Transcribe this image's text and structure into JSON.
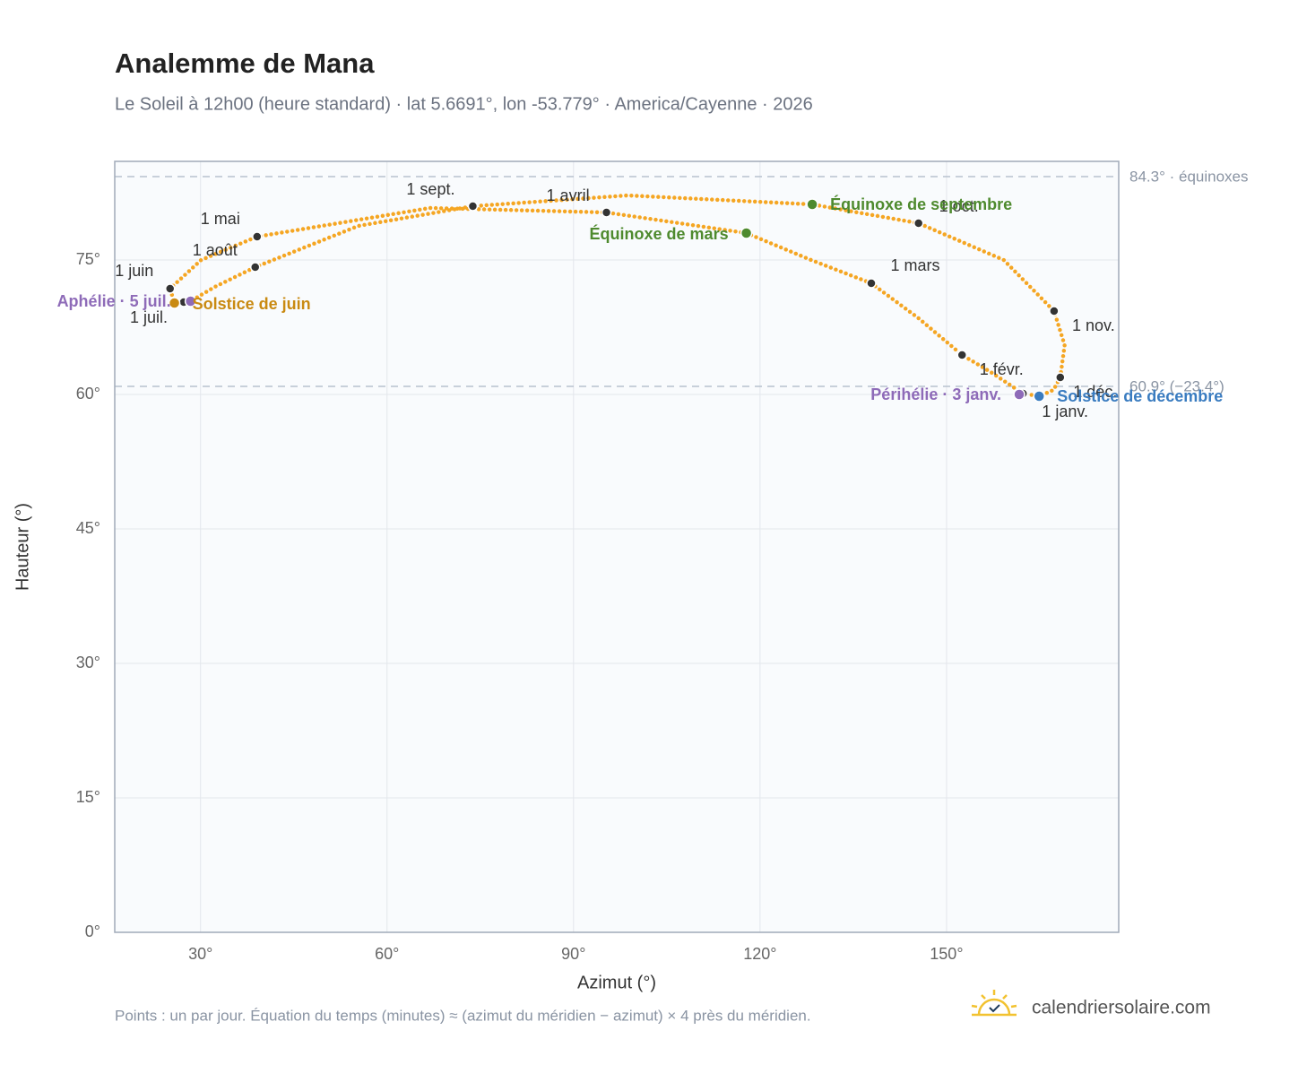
{
  "chart_data": {
    "type": "analemma",
    "title": "Analemme de Mana",
    "subtitle": "Le Soleil à 12h00 (heure standard) · lat 5.6691°, lon -53.779° · America/Cayenne · 2026",
    "x_label": "Azimut (°)",
    "y_label": "Hauteur (°)",
    "note": "Points : un par jour. Équation du temps (minutes) ≈ (azimut du méridien − azimut) × 4 près du méridien.",
    "brand": "calendriersolaire.com",
    "xlim": [
      16.2,
      177.7
    ],
    "ylim": [
      0,
      86
    ],
    "xticks": [
      {
        "value": 30,
        "label": "30°"
      },
      {
        "value": 60,
        "label": "60°"
      },
      {
        "value": 90,
        "label": "90°"
      },
      {
        "value": 120,
        "label": "120°"
      },
      {
        "value": 150,
        "label": "150°"
      }
    ],
    "yticks": [
      {
        "value": 0,
        "label": "0°"
      },
      {
        "value": 15,
        "label": "15°"
      },
      {
        "value": 30,
        "label": "30°"
      },
      {
        "value": 45,
        "label": "45°"
      },
      {
        "value": 60,
        "label": "60°"
      },
      {
        "value": 75,
        "label": "75°"
      }
    ],
    "grid": true,
    "curve_color": "#f5a623",
    "curve": {
      "x": [
        162.3,
        157.1,
        152.5,
        145.5,
        137.9,
        128.2,
        117.8,
        95.3,
        66.9,
        39.1,
        30.1,
        25.1,
        25.8,
        27.3,
        28.4,
        32.3,
        38.8,
        55.4,
        73.8,
        98.7,
        128.4,
        145.5,
        159.2,
        167.3,
        169.0,
        168.3,
        167.2,
        164.9,
        162.5
      ],
      "y": [
        60.1,
        62.5,
        64.4,
        68.5,
        72.4,
        75.0,
        78.0,
        80.3,
        80.8,
        77.6,
        75.0,
        71.8,
        70.2,
        70.3,
        70.4,
        72.0,
        74.2,
        78.8,
        81.0,
        82.2,
        81.2,
        79.1,
        75.0,
        69.3,
        65.5,
        61.9,
        60.5,
        59.8,
        60.1
      ]
    },
    "months": {
      "labels": [
        "1 janv.",
        "1 févr.",
        "1 mars",
        "1 avril",
        "1 mai",
        "1 juin",
        "1 juil.",
        "1 août",
        "1 sept.",
        "1 oct.",
        "1 nov.",
        "1 déc."
      ],
      "x": [
        162.3,
        152.5,
        137.9,
        95.3,
        39.1,
        25.1,
        27.3,
        38.8,
        73.8,
        145.5,
        167.3,
        168.3
      ],
      "y": [
        60.1,
        64.4,
        72.4,
        80.3,
        77.6,
        71.8,
        70.3,
        74.2,
        81.0,
        79.1,
        69.3,
        61.9
      ]
    },
    "events": [
      {
        "label": "Équinoxe de mars",
        "x": 117.8,
        "y": 78.0,
        "color": "#4e8a2e"
      },
      {
        "label": "Solstice de juin",
        "x": 25.8,
        "y": 70.2,
        "color": "#c98a12"
      },
      {
        "label": "Aphélie · 5 juil.",
        "x": 28.4,
        "y": 70.4,
        "color": "#8e6bb8"
      },
      {
        "label": "Équinoxe de septembre",
        "x": 128.4,
        "y": 81.2,
        "color": "#4e8a2e"
      },
      {
        "label": "Solstice de décembre",
        "x": 164.9,
        "y": 59.8,
        "color": "#3a7cc0"
      },
      {
        "label": "Périhélie · 3 janv.",
        "x": 161.7,
        "y": 60.0,
        "color": "#8e6bb8"
      }
    ],
    "reference_lines": [
      {
        "value": 84.3,
        "label": "84.3° · équinoxes"
      },
      {
        "value": 60.9,
        "label": "60.9° (−23.4°)"
      }
    ]
  }
}
